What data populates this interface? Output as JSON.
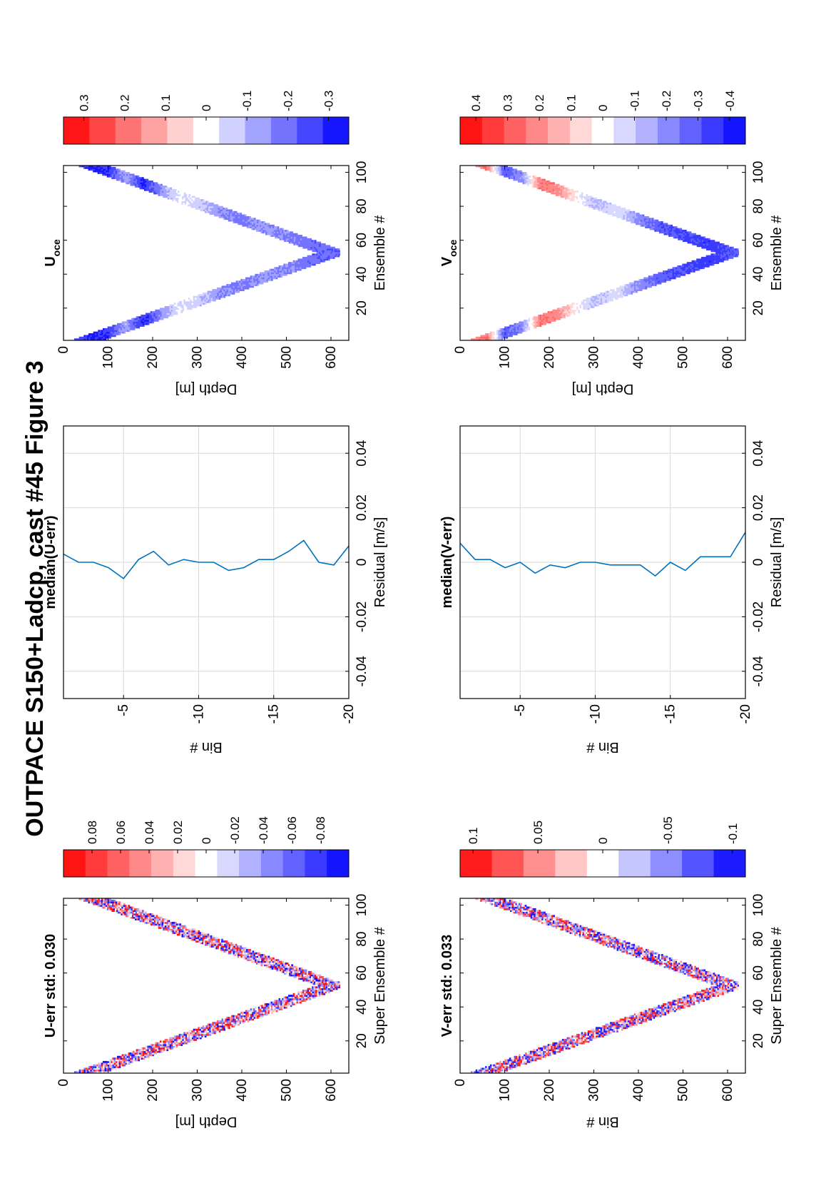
{
  "figure": {
    "title": "OUTPACE S150+Ladcp, cast #45  Figure 3"
  },
  "chart_data": [
    {
      "id": "u-err-field",
      "type": "heatmap",
      "title": "U-err std: 0.030",
      "xlabel": "Super Ensemble #",
      "ylabel": "Depth [m]",
      "xlim": [
        1,
        104
      ],
      "ylim": [
        0,
        640
      ],
      "xticks": [
        "20",
        "40",
        "60",
        "80",
        "100"
      ],
      "xtick_values": [
        20,
        40,
        60,
        80,
        100
      ],
      "yticks": [
        "0",
        "100",
        "200",
        "300",
        "400",
        "500",
        "600"
      ],
      "ytick_values": [
        0,
        100,
        200,
        300,
        400,
        500,
        600
      ],
      "profile": {
        "max_depth": 620,
        "bottom_index": 52,
        "top_depth": 40,
        "band_width": 72,
        "bins": 20
      },
      "colorbar": {
        "ticks": [
          "0.08",
          "0.06",
          "0.04",
          "0.02",
          "0",
          "-0.02",
          "-0.04",
          "-0.06",
          "-0.08"
        ],
        "tick_values": [
          0.08,
          0.06,
          0.04,
          0.02,
          0,
          -0.02,
          -0.04,
          -0.06,
          -0.08
        ],
        "range": [
          -0.1,
          0.1
        ]
      },
      "pattern_seed": 11
    },
    {
      "id": "u-median-residual",
      "type": "line",
      "title": "median(U-err)",
      "xlabel": "Residual [m/s]",
      "ylabel": "Bin #",
      "xlim": [
        -0.05,
        0.05
      ],
      "ylim": [
        -20,
        -1
      ],
      "xticks": [
        "-0.04",
        "-0.02",
        "0",
        "0.02",
        "0.04"
      ],
      "xtick_values": [
        -0.04,
        -0.02,
        0,
        0.02,
        0.04
      ],
      "yticks": [
        "-5",
        "-10",
        "-15",
        "-20"
      ],
      "ytick_values": [
        -5,
        -10,
        -15,
        -20
      ],
      "grid": true,
      "color": "#0072bd",
      "bins": [
        -1,
        -2,
        -3,
        -4,
        -5,
        -6,
        -7,
        -8,
        -9,
        -10,
        -11,
        -12,
        -13,
        -14,
        -15,
        -16,
        -17,
        -18,
        -19,
        -20
      ],
      "residuals": [
        0.003,
        0.0,
        0.0,
        -0.002,
        -0.006,
        0.001,
        0.004,
        -0.001,
        0.001,
        0.0,
        0.0,
        -0.003,
        -0.002,
        0.001,
        0.001,
        0.004,
        0.008,
        0.0,
        -0.001,
        0.006
      ]
    },
    {
      "id": "u-oce",
      "type": "heatmap",
      "title": "U",
      "title_sub": "oce",
      "xlabel": "Ensemble #",
      "ylabel": "Depth [m]",
      "xlim": [
        1,
        104
      ],
      "ylim": [
        0,
        640
      ],
      "xticks": [
        "20",
        "40",
        "60",
        "80",
        "100"
      ],
      "xtick_values": [
        20,
        40,
        60,
        80,
        100
      ],
      "yticks": [
        "0",
        "100",
        "200",
        "300",
        "400",
        "500",
        "600"
      ],
      "ytick_values": [
        0,
        100,
        200,
        300,
        400,
        500,
        600
      ],
      "profile": {
        "max_depth": 620,
        "bottom_index": 52,
        "top_depth": 40,
        "band_width": 72,
        "bins": 20
      },
      "colorbar": {
        "ticks": [
          "0.3",
          "0.2",
          "0.1",
          "0",
          "-0.1",
          "-0.2",
          "-0.3"
        ],
        "tick_values": [
          0.3,
          0.2,
          0.1,
          0,
          -0.1,
          -0.2,
          -0.3
        ],
        "range": [
          -0.35,
          0.35
        ]
      },
      "depth_profile": [
        [
          0,
          -0.2
        ],
        [
          60,
          -0.3
        ],
        [
          100,
          -0.28
        ],
        [
          140,
          -0.12
        ],
        [
          180,
          -0.3
        ],
        [
          220,
          -0.15
        ],
        [
          260,
          -0.02
        ],
        [
          300,
          -0.06
        ],
        [
          350,
          -0.15
        ],
        [
          400,
          -0.18
        ],
        [
          450,
          -0.14
        ],
        [
          500,
          -0.17
        ],
        [
          560,
          -0.2
        ],
        [
          620,
          -0.22
        ]
      ],
      "pattern_seed": 23
    },
    {
      "id": "v-err-field",
      "type": "heatmap",
      "title": "V-err std: 0.033",
      "xlabel": "Super Ensemble #",
      "ylabel": "Bin #",
      "xlim": [
        1,
        104
      ],
      "ylim": [
        0,
        640
      ],
      "xticks": [
        "20",
        "40",
        "60",
        "80",
        "100"
      ],
      "xtick_values": [
        20,
        40,
        60,
        80,
        100
      ],
      "yticks": [
        "0",
        "100",
        "200",
        "300",
        "400",
        "500",
        "600"
      ],
      "ytick_values": [
        0,
        100,
        200,
        300,
        400,
        500,
        600
      ],
      "profile": {
        "max_depth": 625,
        "bottom_index": 52,
        "top_depth": 40,
        "band_width": 72,
        "bins": 20
      },
      "colorbar": {
        "ticks": [
          "0.1",
          "0.05",
          "0",
          "-0.05",
          "-0.1"
        ],
        "tick_values": [
          0.1,
          0.05,
          0,
          -0.05,
          -0.1
        ],
        "range": [
          -0.11,
          0.11
        ]
      },
      "pattern_seed": 37
    },
    {
      "id": "v-median-residual",
      "type": "line",
      "title": "median(V-err)",
      "xlabel": "Residual [m/s]",
      "ylabel": "Bin #",
      "xlim": [
        -0.05,
        0.05
      ],
      "ylim": [
        -20,
        -1
      ],
      "xticks": [
        "-0.04",
        "-0.02",
        "0",
        "0.02",
        "0.04"
      ],
      "xtick_values": [
        -0.04,
        -0.02,
        0,
        0.02,
        0.04
      ],
      "yticks": [
        "-5",
        "-10",
        "-15",
        "-20"
      ],
      "ytick_values": [
        -5,
        -10,
        -15,
        -20
      ],
      "grid": true,
      "color": "#0072bd",
      "bins": [
        -1,
        -2,
        -3,
        -4,
        -5,
        -6,
        -7,
        -8,
        -9,
        -10,
        -11,
        -12,
        -13,
        -14,
        -15,
        -16,
        -17,
        -18,
        -19,
        -20
      ],
      "residuals": [
        0.007,
        0.001,
        0.001,
        -0.002,
        0.0,
        -0.004,
        -0.001,
        -0.002,
        0.0,
        0.0,
        -0.001,
        -0.001,
        -0.001,
        -0.005,
        0.0,
        -0.003,
        0.002,
        0.002,
        0.002,
        0.011
      ]
    },
    {
      "id": "v-oce",
      "type": "heatmap",
      "title": "V",
      "title_sub": "oce",
      "xlabel": "Ensemble #",
      "ylabel": "Depth [m]",
      "xlim": [
        1,
        104
      ],
      "ylim": [
        0,
        640
      ],
      "xticks": [
        "20",
        "40",
        "60",
        "80",
        "100"
      ],
      "xtick_values": [
        20,
        40,
        60,
        80,
        100
      ],
      "yticks": [
        "0",
        "100",
        "200",
        "300",
        "400",
        "500",
        "600"
      ],
      "ytick_values": [
        0,
        100,
        200,
        300,
        400,
        500,
        600
      ],
      "profile": {
        "max_depth": 625,
        "bottom_index": 52,
        "top_depth": 40,
        "band_width": 72,
        "bins": 20
      },
      "colorbar": {
        "ticks": [
          "0.4",
          "0.3",
          "0.2",
          "0.1",
          "0",
          "-0.1",
          "-0.2",
          "-0.3",
          "-0.4"
        ],
        "tick_values": [
          0.4,
          0.3,
          0.2,
          0.1,
          0,
          -0.1,
          -0.2,
          -0.3,
          -0.4
        ],
        "range": [
          -0.45,
          0.45
        ]
      },
      "depth_profile": [
        [
          0,
          0.15
        ],
        [
          60,
          0.25
        ],
        [
          100,
          -0.3
        ],
        [
          140,
          -0.2
        ],
        [
          180,
          0.25
        ],
        [
          220,
          0.2
        ],
        [
          260,
          0.02
        ],
        [
          300,
          -0.12
        ],
        [
          350,
          -0.05
        ],
        [
          400,
          -0.2
        ],
        [
          450,
          -0.3
        ],
        [
          500,
          -0.32
        ],
        [
          560,
          -0.35
        ],
        [
          620,
          -0.3
        ]
      ],
      "pattern_seed": 51
    }
  ]
}
